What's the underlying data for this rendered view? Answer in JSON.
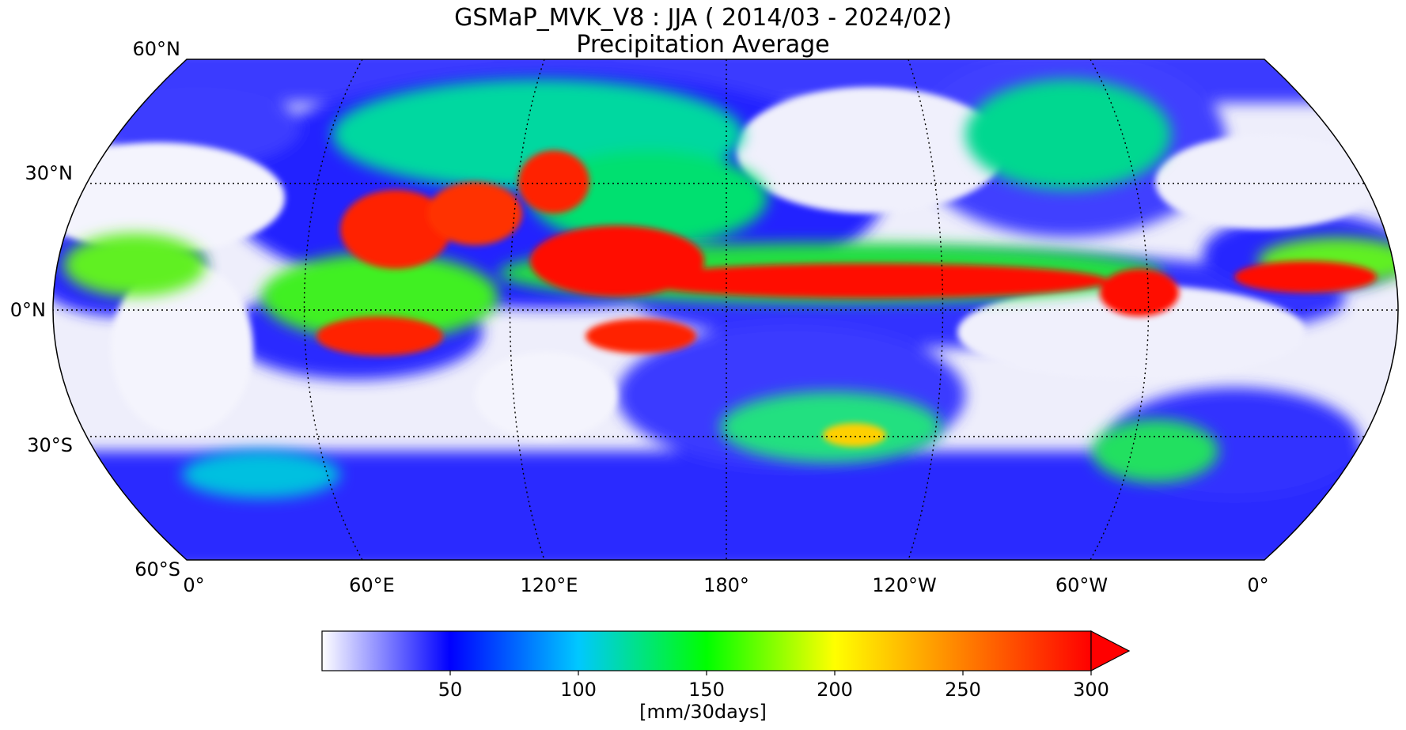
{
  "title": {
    "line1": "GSMaP_MVK_V8 : JJA ( 2014/03 - 2024/02)",
    "line2": "Precipitation Average"
  },
  "map": {
    "projection": "Robinson (central meridian 180°)",
    "lat_ticks": [
      "60°N",
      "30°N",
      "0°N",
      "30°S",
      "60°S"
    ],
    "lon_ticks": [
      "0°",
      "60°E",
      "120°E",
      "180°",
      "120°W",
      "60°W",
      "0°"
    ],
    "colors": {
      "ocean_dry": "#f2f2fb",
      "outline": "#000000",
      "graticule": "#000000"
    }
  },
  "colorbar": {
    "ticks": [
      "50",
      "100",
      "150",
      "200",
      "250",
      "300"
    ],
    "unit": "[mm/30days]",
    "range": [
      0,
      300
    ],
    "extend": "max",
    "stops": [
      {
        "value": 0,
        "color": "#ffffff"
      },
      {
        "value": 50,
        "color": "#0000ff"
      },
      {
        "value": 100,
        "color": "#00c8ff"
      },
      {
        "value": 150,
        "color": "#00ff00"
      },
      {
        "value": 200,
        "color": "#ffff00"
      },
      {
        "value": 250,
        "color": "#ff8000"
      },
      {
        "value": 300,
        "color": "#ff0000"
      }
    ]
  }
}
